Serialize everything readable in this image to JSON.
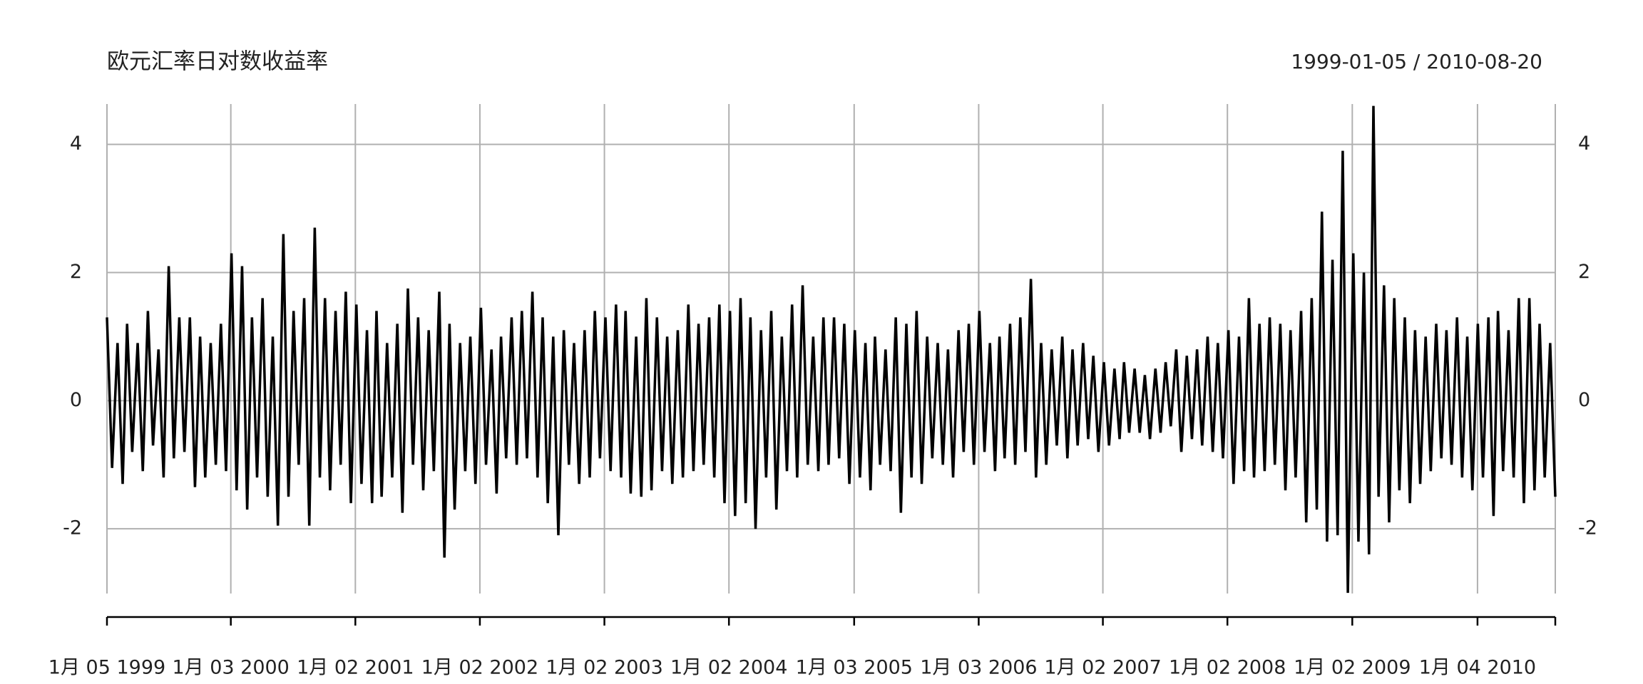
{
  "chart_data": {
    "type": "line",
    "title": "欧元汇率日对数收益率",
    "subtitle": "1999-01-05 / 2010-08-20",
    "color": "#000000",
    "grid": true,
    "xlim": [
      "1999-01-05",
      "2010-08-20"
    ],
    "xticks": [
      {
        "value": "1999-01-05",
        "label": "1月 05 1999"
      },
      {
        "value": "2000-01-03",
        "label": "1月 03 2000"
      },
      {
        "value": "2001-01-02",
        "label": "1月 02 2001"
      },
      {
        "value": "2002-01-02",
        "label": "1月 02 2002"
      },
      {
        "value": "2003-01-02",
        "label": "1月 02 2003"
      },
      {
        "value": "2004-01-02",
        "label": "1月 02 2004"
      },
      {
        "value": "2005-01-03",
        "label": "1月 03 2005"
      },
      {
        "value": "2006-01-03",
        "label": "1月 03 2006"
      },
      {
        "value": "2007-01-02",
        "label": "1月 02 2007"
      },
      {
        "value": "2008-01-02",
        "label": "1月 02 2008"
      },
      {
        "value": "2009-01-02",
        "label": "1月 02 2009"
      },
      {
        "value": "2010-01-04",
        "label": "1月 04 2010"
      }
    ],
    "ylim": [
      -3.01,
      4.63
    ],
    "yticks": [
      -2,
      0,
      2,
      4
    ],
    "x": [
      "1999-01-05",
      "1999-01-20",
      "1999-02-05",
      "1999-02-20",
      "1999-03-05",
      "1999-03-20",
      "1999-04-05",
      "1999-04-20",
      "1999-05-05",
      "1999-05-20",
      "1999-06-05",
      "1999-06-20",
      "1999-07-05",
      "1999-07-20",
      "1999-08-05",
      "1999-08-20",
      "1999-09-05",
      "1999-09-20",
      "1999-10-05",
      "1999-10-20",
      "1999-11-05",
      "1999-11-20",
      "1999-12-05",
      "1999-12-20",
      "2000-01-05",
      "2000-01-20",
      "2000-02-05",
      "2000-02-20",
      "2000-03-05",
      "2000-03-20",
      "2000-04-05",
      "2000-04-20",
      "2000-05-05",
      "2000-05-20",
      "2000-06-05",
      "2000-06-20",
      "2000-07-05",
      "2000-07-20",
      "2000-08-05",
      "2000-08-20",
      "2000-09-05",
      "2000-09-20",
      "2000-10-05",
      "2000-10-20",
      "2000-11-05",
      "2000-11-20",
      "2000-12-05",
      "2000-12-20",
      "2001-01-05",
      "2001-01-20",
      "2001-02-05",
      "2001-02-20",
      "2001-03-05",
      "2001-03-20",
      "2001-04-05",
      "2001-04-20",
      "2001-05-05",
      "2001-05-20",
      "2001-06-05",
      "2001-06-20",
      "2001-07-05",
      "2001-07-20",
      "2001-08-05",
      "2001-08-20",
      "2001-09-05",
      "2001-09-20",
      "2001-10-05",
      "2001-10-20",
      "2001-11-05",
      "2001-11-20",
      "2001-12-05",
      "2001-12-20",
      "2002-01-05",
      "2002-01-20",
      "2002-02-05",
      "2002-02-20",
      "2002-03-05",
      "2002-03-20",
      "2002-04-05",
      "2002-04-20",
      "2002-05-05",
      "2002-05-20",
      "2002-06-05",
      "2002-06-20",
      "2002-07-05",
      "2002-07-20",
      "2002-08-05",
      "2002-08-20",
      "2002-09-05",
      "2002-09-20",
      "2002-10-05",
      "2002-10-20",
      "2002-11-05",
      "2002-11-20",
      "2002-12-05",
      "2002-12-20",
      "2003-01-05",
      "2003-01-20",
      "2003-02-05",
      "2003-02-20",
      "2003-03-05",
      "2003-03-20",
      "2003-04-05",
      "2003-04-20",
      "2003-05-05",
      "2003-05-20",
      "2003-06-05",
      "2003-06-20",
      "2003-07-05",
      "2003-07-20",
      "2003-08-05",
      "2003-08-20",
      "2003-09-05",
      "2003-09-20",
      "2003-10-05",
      "2003-10-20",
      "2003-11-05",
      "2003-11-20",
      "2003-12-05",
      "2003-12-20",
      "2004-01-05",
      "2004-01-20",
      "2004-02-05",
      "2004-02-20",
      "2004-03-05",
      "2004-03-20",
      "2004-04-05",
      "2004-04-20",
      "2004-05-05",
      "2004-05-20",
      "2004-06-05",
      "2004-06-20",
      "2004-07-05",
      "2004-07-20",
      "2004-08-05",
      "2004-08-20",
      "2004-09-05",
      "2004-09-20",
      "2004-10-05",
      "2004-10-20",
      "2004-11-05",
      "2004-11-20",
      "2004-12-05",
      "2004-12-20",
      "2005-01-05",
      "2005-01-20",
      "2005-02-05",
      "2005-02-20",
      "2005-03-05",
      "2005-03-20",
      "2005-04-05",
      "2005-04-20",
      "2005-05-05",
      "2005-05-20",
      "2005-06-05",
      "2005-06-20",
      "2005-07-05",
      "2005-07-20",
      "2005-08-05",
      "2005-08-20",
      "2005-09-05",
      "2005-09-20",
      "2005-10-05",
      "2005-10-20",
      "2005-11-05",
      "2005-11-20",
      "2005-12-05",
      "2005-12-20",
      "2006-01-05",
      "2006-01-20",
      "2006-02-05",
      "2006-02-20",
      "2006-03-05",
      "2006-03-20",
      "2006-04-05",
      "2006-04-20",
      "2006-05-05",
      "2006-05-20",
      "2006-06-05",
      "2006-06-20",
      "2006-07-05",
      "2006-07-20",
      "2006-08-05",
      "2006-08-20",
      "2006-09-05",
      "2006-09-20",
      "2006-10-05",
      "2006-10-20",
      "2006-11-05",
      "2006-11-20",
      "2006-12-05",
      "2006-12-20",
      "2007-01-05",
      "2007-01-20",
      "2007-02-05",
      "2007-02-20",
      "2007-03-05",
      "2007-03-20",
      "2007-04-05",
      "2007-04-20",
      "2007-05-05",
      "2007-05-20",
      "2007-06-05",
      "2007-06-20",
      "2007-07-05",
      "2007-07-20",
      "2007-08-05",
      "2007-08-20",
      "2007-09-05",
      "2007-09-20",
      "2007-10-05",
      "2007-10-20",
      "2007-11-05",
      "2007-11-20",
      "2007-12-05",
      "2007-12-20",
      "2008-01-05",
      "2008-01-20",
      "2008-02-05",
      "2008-02-20",
      "2008-03-05",
      "2008-03-20",
      "2008-04-05",
      "2008-04-20",
      "2008-05-05",
      "2008-05-20",
      "2008-06-05",
      "2008-06-20",
      "2008-07-05",
      "2008-07-20",
      "2008-08-05",
      "2008-08-20",
      "2008-09-05",
      "2008-09-20",
      "2008-10-05",
      "2008-10-20",
      "2008-11-05",
      "2008-11-20",
      "2008-12-05",
      "2008-12-20",
      "2009-01-05",
      "2009-01-20",
      "2009-02-05",
      "2009-02-20",
      "2009-03-05",
      "2009-03-20",
      "2009-04-05",
      "2009-04-20",
      "2009-05-05",
      "2009-05-20",
      "2009-06-05",
      "2009-06-20",
      "2009-07-05",
      "2009-07-20",
      "2009-08-05",
      "2009-08-20",
      "2009-09-05",
      "2009-09-20",
      "2009-10-05",
      "2009-10-20",
      "2009-11-05",
      "2009-11-20",
      "2009-12-05",
      "2009-12-20",
      "2010-01-05",
      "2010-01-20",
      "2010-02-05",
      "2010-02-20",
      "2010-03-05",
      "2010-03-20",
      "2010-04-05",
      "2010-04-20",
      "2010-05-05",
      "2010-05-20",
      "2010-06-05",
      "2010-06-20",
      "2010-07-05",
      "2010-07-20",
      "2010-08-05",
      "2010-08-20"
    ],
    "values": [
      1.3,
      -1.05,
      0.9,
      -1.3,
      1.2,
      -0.8,
      0.9,
      -1.1,
      1.4,
      -0.7,
      0.8,
      -1.2,
      2.1,
      -0.9,
      1.3,
      -0.8,
      1.3,
      -1.35,
      1.0,
      -1.2,
      0.9,
      -1.0,
      1.2,
      -1.1,
      2.3,
      -1.4,
      2.1,
      -1.7,
      1.3,
      -1.2,
      1.6,
      -1.5,
      1.0,
      -1.95,
      2.6,
      -1.5,
      1.4,
      -1.0,
      1.6,
      -1.95,
      2.7,
      -1.2,
      1.6,
      -1.4,
      1.4,
      -1.0,
      1.7,
      -1.6,
      1.5,
      -1.3,
      1.1,
      -1.6,
      1.4,
      -1.5,
      0.9,
      -1.2,
      1.2,
      -1.75,
      1.75,
      -1.0,
      1.3,
      -1.4,
      1.1,
      -1.1,
      1.7,
      -2.45,
      1.2,
      -1.7,
      0.9,
      -1.1,
      1.0,
      -1.3,
      1.45,
      -1.0,
      0.8,
      -1.45,
      1.0,
      -0.9,
      1.3,
      -1.0,
      1.4,
      -0.9,
      1.7,
      -1.2,
      1.3,
      -1.6,
      1.0,
      -2.1,
      1.1,
      -1.0,
      0.9,
      -1.3,
      1.1,
      -1.2,
      1.4,
      -0.9,
      1.3,
      -1.1,
      1.5,
      -1.2,
      1.4,
      -1.45,
      1.0,
      -1.5,
      1.6,
      -1.4,
      1.3,
      -1.1,
      1.0,
      -1.3,
      1.1,
      -1.2,
      1.5,
      -1.1,
      1.2,
      -1.0,
      1.3,
      -1.2,
      1.5,
      -1.6,
      1.4,
      -1.8,
      1.6,
      -1.6,
      1.3,
      -2.0,
      1.1,
      -1.2,
      1.4,
      -1.7,
      1.0,
      -1.1,
      1.5,
      -1.2,
      1.8,
      -1.0,
      1.0,
      -1.1,
      1.3,
      -1.0,
      1.3,
      -0.9,
      1.2,
      -1.3,
      1.1,
      -1.2,
      0.9,
      -1.4,
      1.0,
      -1.0,
      0.8,
      -1.1,
      1.3,
      -1.75,
      1.2,
      -1.2,
      1.4,
      -1.3,
      1.0,
      -0.9,
      0.9,
      -1.0,
      0.8,
      -1.2,
      1.1,
      -0.8,
      1.2,
      -1.0,
      1.4,
      -0.8,
      0.9,
      -1.1,
      1.0,
      -0.9,
      1.2,
      -1.0,
      1.3,
      -0.8,
      1.9,
      -1.2,
      0.9,
      -1.0,
      0.8,
      -0.7,
      1.0,
      -0.9,
      0.8,
      -0.7,
      0.9,
      -0.6,
      0.7,
      -0.8,
      0.6,
      -0.7,
      0.5,
      -0.6,
      0.6,
      -0.5,
      0.5,
      -0.5,
      0.4,
      -0.6,
      0.5,
      -0.5,
      0.6,
      -0.4,
      0.8,
      -0.8,
      0.7,
      -0.6,
      0.8,
      -0.7,
      1.0,
      -0.8,
      0.9,
      -0.9,
      1.1,
      -1.3,
      1.0,
      -1.1,
      1.6,
      -1.2,
      1.2,
      -1.1,
      1.3,
      -1.0,
      1.2,
      -1.4,
      1.1,
      -1.2,
      1.4,
      -1.9,
      1.6,
      -1.7,
      2.95,
      -2.2,
      2.2,
      -2.1,
      3.9,
      -3.0,
      2.3,
      -2.2,
      2.0,
      -2.4,
      4.6,
      -1.5,
      1.8,
      -1.9,
      1.6,
      -1.4,
      1.3,
      -1.6,
      1.1,
      -1.3,
      1.0,
      -1.1,
      1.2,
      -0.9,
      1.1,
      -1.0,
      1.3,
      -1.2,
      1.0,
      -1.4,
      1.2,
      -1.2,
      1.3,
      -1.8,
      1.4,
      -1.1,
      1.1,
      -1.2,
      1.6,
      -1.6,
      1.6,
      -1.4,
      1.2,
      -1.2,
      0.9,
      -1.5
    ]
  }
}
